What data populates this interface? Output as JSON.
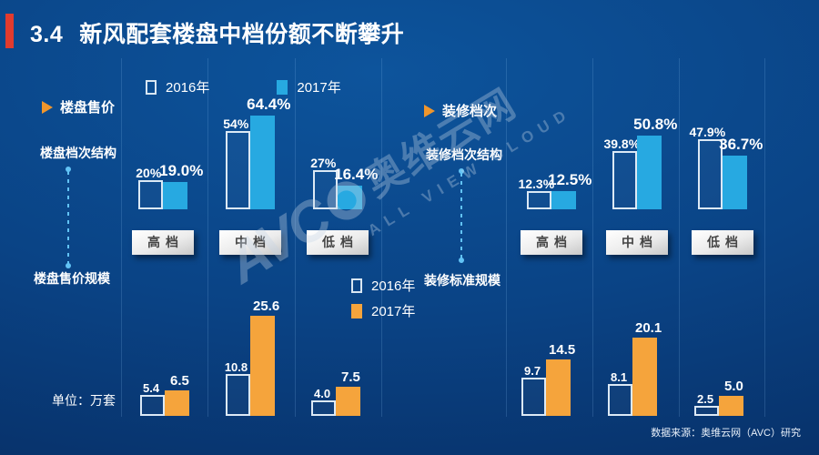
{
  "title": {
    "number": "3.4",
    "text": "新风配套楼盘中档份额不断攀升"
  },
  "colors": {
    "background_top": "#0d549c",
    "background_bottom": "#072b60",
    "accent_red": "#e23b2e",
    "bar_blue": "#27a9e1",
    "bar_orange": "#f5a43c",
    "bar_outline": "#dce9f5",
    "triangle_orange": "#f0962c"
  },
  "legend_top": {
    "items": [
      {
        "label": "2016年",
        "style": "outline"
      },
      {
        "label": "2017年",
        "style": "blue"
      }
    ]
  },
  "legend_bottom": {
    "items": [
      {
        "label": "2016年",
        "style": "outline"
      },
      {
        "label": "2017年",
        "style": "orange"
      }
    ]
  },
  "sections": {
    "left": {
      "header": "楼盘售价",
      "top_chart_label": "楼盘档次结构",
      "bottom_chart_label": "楼盘售价规模"
    },
    "right": {
      "header": "装修档次",
      "top_chart_label": "装修档次结构",
      "bottom_chart_label": "装修标准规模"
    }
  },
  "unit_label": "单位：万套",
  "source": "数据来源：奥维云网（AVC）研究",
  "watermark": {
    "brand": "AVC",
    "name": "奥维云网",
    "tagline": "ALL VIEW CLOUD"
  },
  "chart_data": [
    {
      "id": "building-grade-structure",
      "type": "bar",
      "title": "楼盘档次结构",
      "categories": [
        "高档",
        "中档",
        "低档"
      ],
      "unit": "%",
      "ylim": [
        0,
        70
      ],
      "grid": false,
      "legend_position": "top",
      "series": [
        {
          "name": "2016年",
          "values": [
            20,
            54,
            27
          ],
          "labels": [
            "20%",
            "54%",
            "27%"
          ]
        },
        {
          "name": "2017年",
          "values": [
            19.0,
            64.4,
            16.4
          ],
          "labels": [
            "19.0%",
            "64.4%",
            "16.4%"
          ]
        }
      ]
    },
    {
      "id": "decoration-grade-structure",
      "type": "bar",
      "title": "装修档次结构",
      "categories": [
        "高档",
        "中档",
        "低档"
      ],
      "unit": "%",
      "ylim": [
        0,
        70
      ],
      "grid": false,
      "legend_position": "top",
      "series": [
        {
          "name": "2016年",
          "values": [
            12.3,
            39.8,
            47.9
          ],
          "labels": [
            "12.3%",
            "39.8%",
            "47.9%"
          ]
        },
        {
          "name": "2017年",
          "values": [
            12.5,
            50.8,
            36.7
          ],
          "labels": [
            "12.5%",
            "50.8%",
            "36.7%"
          ]
        }
      ]
    },
    {
      "id": "building-price-scale",
      "type": "bar",
      "title": "楼盘售价规模",
      "categories": [
        "高档",
        "中档",
        "低档"
      ],
      "unit": "万套",
      "ylim": [
        0,
        28
      ],
      "grid": false,
      "legend_position": "center",
      "series": [
        {
          "name": "2016年",
          "values": [
            5.4,
            10.8,
            4.0
          ],
          "labels": [
            "5.4",
            "10.8",
            "4.0"
          ]
        },
        {
          "name": "2017年",
          "values": [
            6.5,
            25.6,
            7.5
          ],
          "labels": [
            "6.5",
            "25.6",
            "7.5"
          ]
        }
      ]
    },
    {
      "id": "decoration-standard-scale",
      "type": "bar",
      "title": "装修标准规模",
      "categories": [
        "高档",
        "中档",
        "低档"
      ],
      "unit": "万套",
      "ylim": [
        0,
        28
      ],
      "grid": false,
      "legend_position": "center",
      "series": [
        {
          "name": "2016年",
          "values": [
            9.7,
            8.1,
            2.5
          ],
          "labels": [
            "9.7",
            "8.1",
            "2.5"
          ]
        },
        {
          "name": "2017年",
          "values": [
            14.5,
            20.1,
            5.0
          ],
          "labels": [
            "14.5",
            "20.1",
            "5.0"
          ]
        }
      ]
    }
  ]
}
